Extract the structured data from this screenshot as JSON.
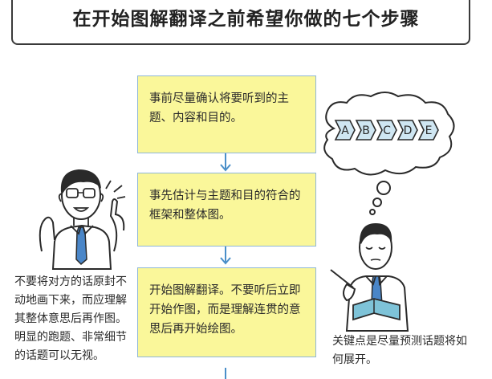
{
  "header": {
    "title": "在开始图解翻译之前希望你做的七个步骤"
  },
  "steps": [
    {
      "text": "事前尽量确认将要听到的主题、内容和目的。"
    },
    {
      "text": "事先估计与主题和目的符合的框架和整体图。"
    },
    {
      "text": "开始图解翻译。不要听后立即开始作图，而是理解连贯的意思后再开始绘图。"
    }
  ],
  "left_caption": {
    "text": "不要将对方的话原封不动地画下来，而应理解其整体意思后再作图。明显的跑题、非常细节的话题可以无视。"
  },
  "right_caption": {
    "text": "关键点是尽量预测话题将如何展开。"
  },
  "thought_bubble": {
    "sequence": [
      "A",
      "B",
      "C",
      "D",
      "E"
    ]
  },
  "colors": {
    "step_fill": "#faf79a",
    "step_border": "#8fb7d8",
    "arrow": "#4a8fc9",
    "tie": "#4a86c8"
  }
}
